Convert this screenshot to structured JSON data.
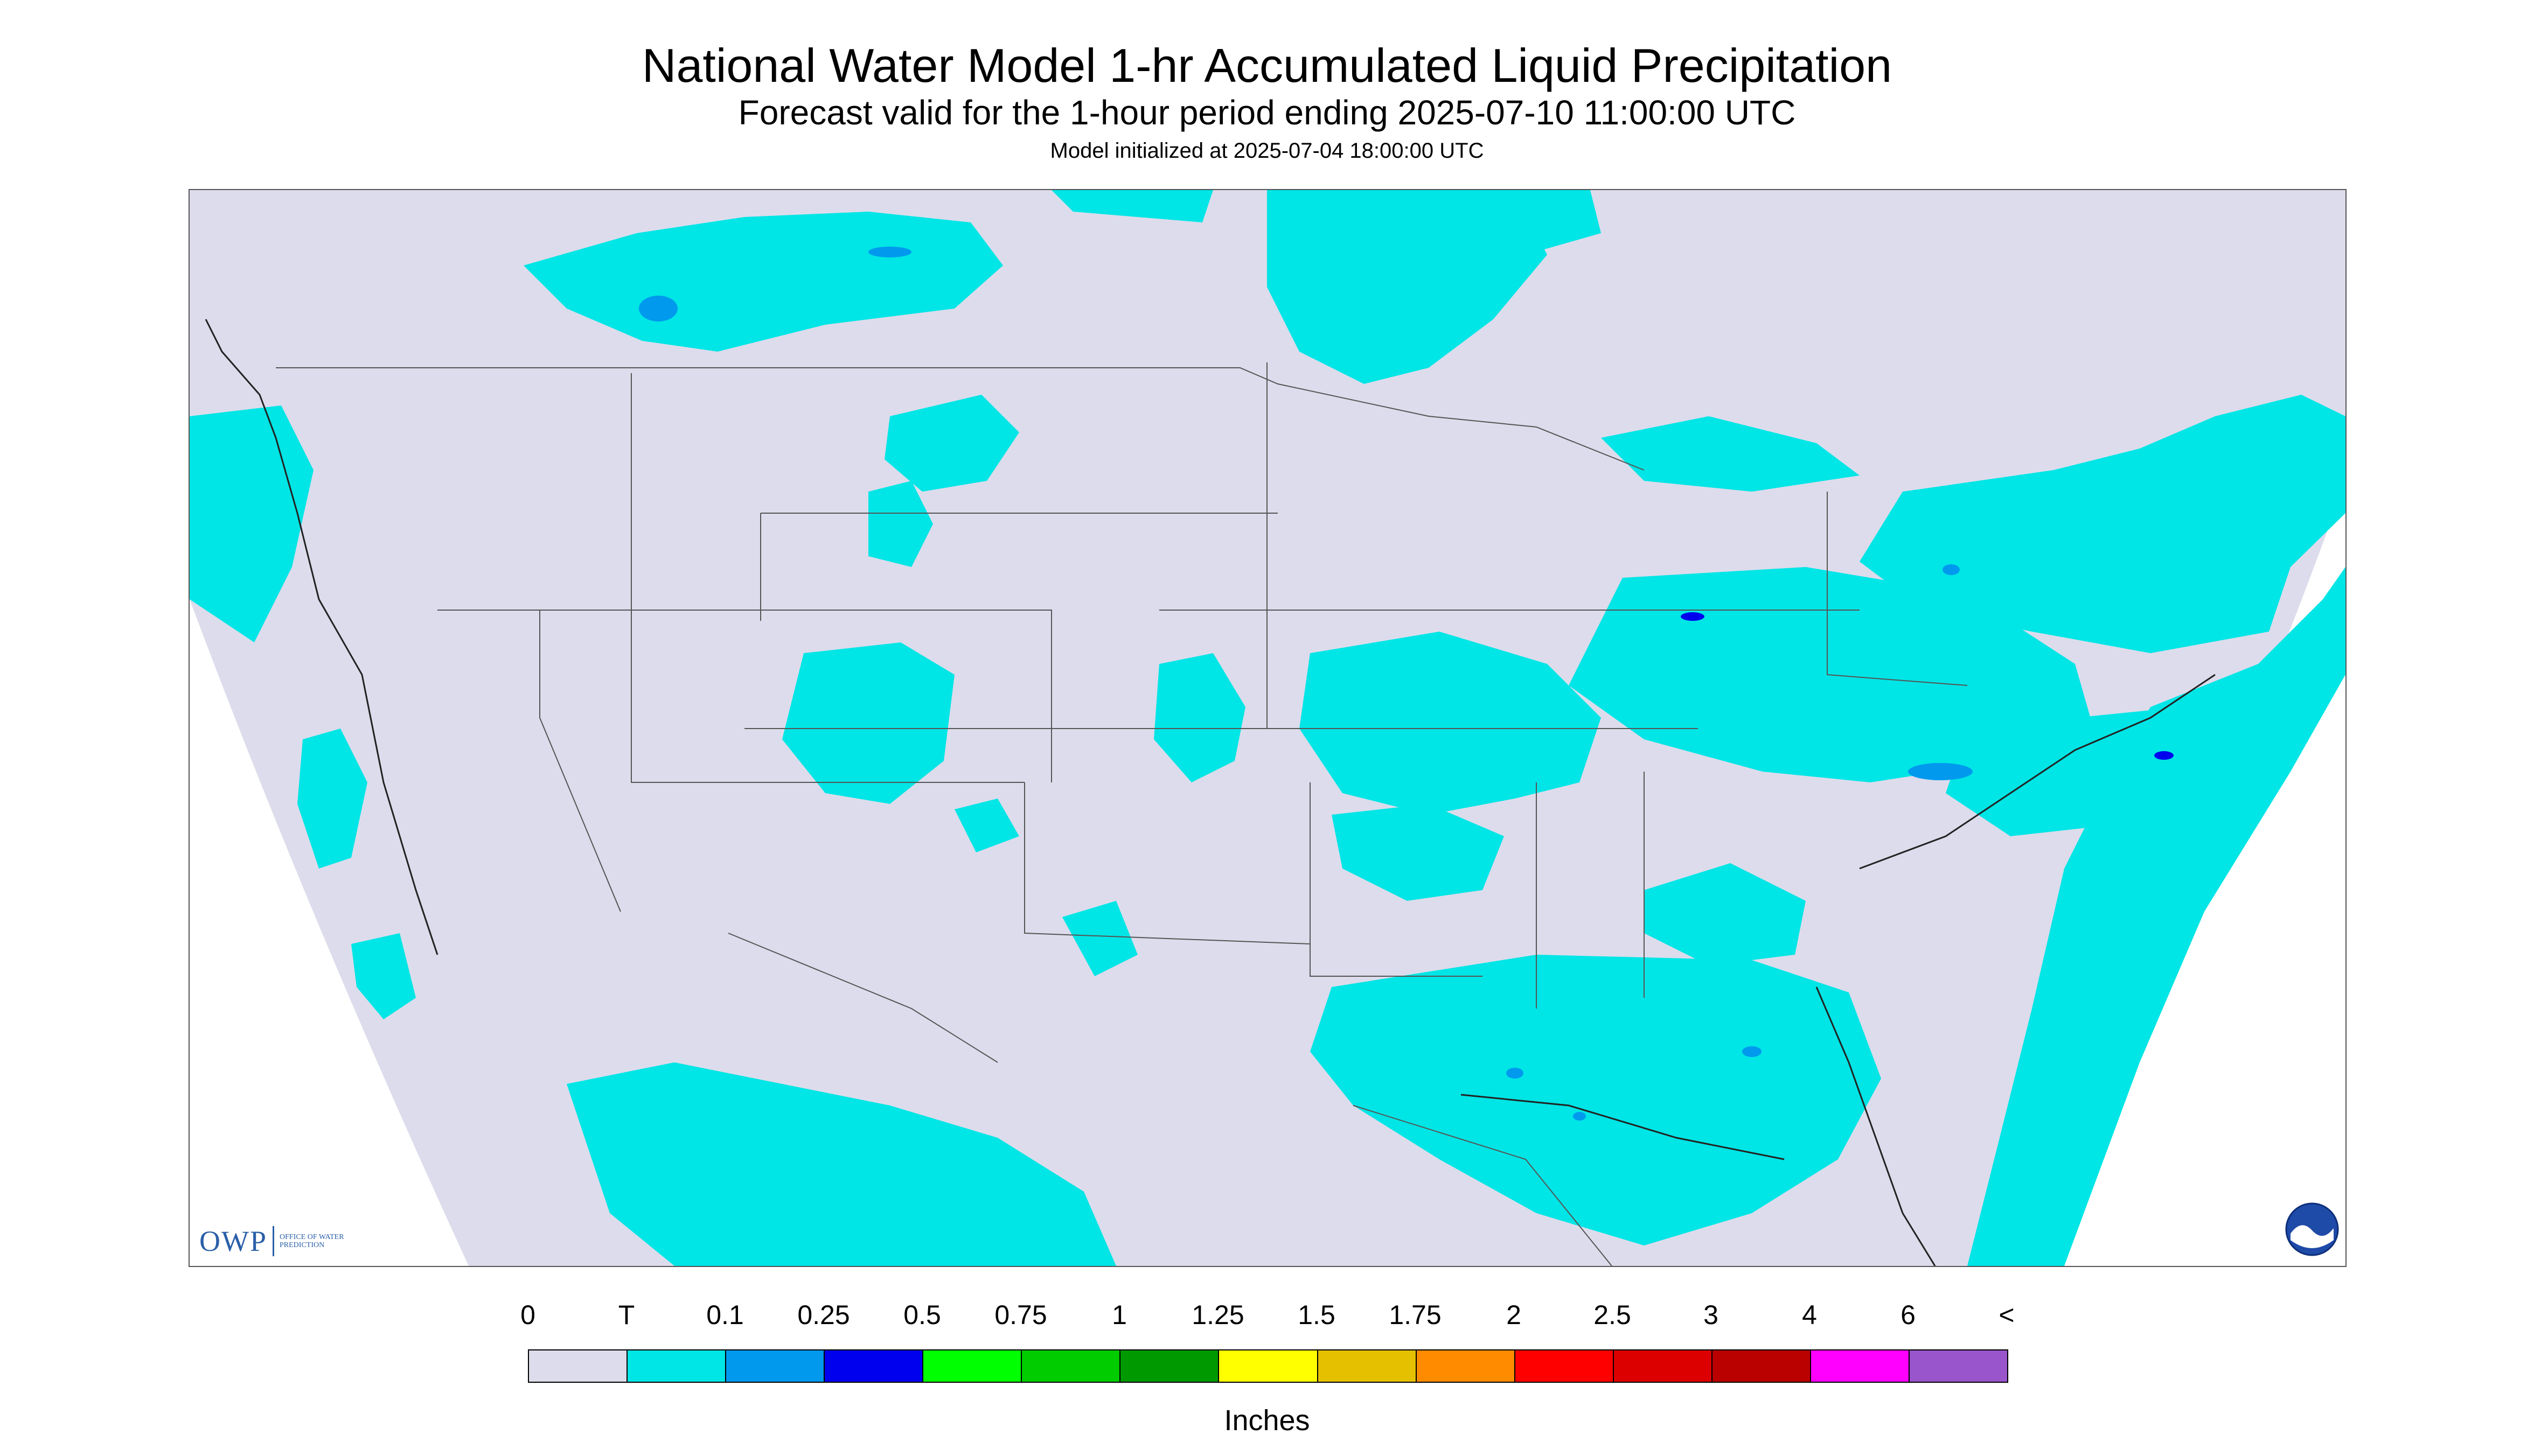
{
  "header": {
    "title": "National Water Model 1-hr Accumulated Liquid Precipitation",
    "subtitle": "Forecast valid for the 1-hour period ending 2025-07-10 11:00:00 UTC",
    "init": "Model initialized at 2025-07-04 18:00:00 UTC"
  },
  "logos": {
    "owp_mark": "OWP",
    "owp_text": "OFFICE OF WATER PREDICTION",
    "noaa_text": "NOAA"
  },
  "colors": {
    "background": "#ffffff",
    "no_data": "#dcdcec",
    "trace": "#00e5e5",
    "light_blue": "#0099ee",
    "blue": "#0000ee",
    "outline": "#555555"
  },
  "legend": {
    "labels": [
      "0",
      "T",
      "0.1",
      "0.25",
      "0.5",
      "0.75",
      "1",
      "1.25",
      "1.5",
      "1.75",
      "2",
      "2.5",
      "3",
      "4",
      "6",
      "<"
    ],
    "colors": [
      "#dcdcec",
      "#00e5e5",
      "#0099ee",
      "#0000ee",
      "#00ff00",
      "#00cc00",
      "#009900",
      "#ffff00",
      "#e5c000",
      "#ff8c00",
      "#ff0000",
      "#dd0000",
      "#bb0000",
      "#ff00ff",
      "#9955cc"
    ],
    "units": "Inches"
  }
}
